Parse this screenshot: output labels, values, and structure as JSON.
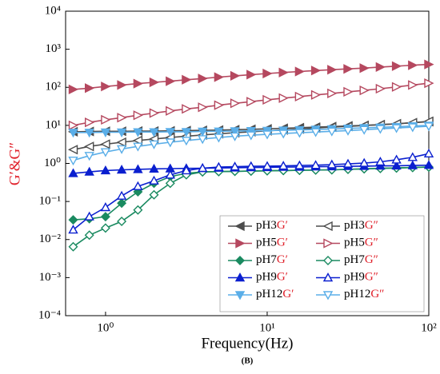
{
  "chart_data": {
    "type": "line",
    "log_x": true,
    "log_y": true,
    "x_label": "Frequency(Hz)",
    "y_label": "G′&G″",
    "caption": "(B)",
    "xlim": [
      0.566,
      100
    ],
    "xticks": [
      {
        "value": 1,
        "label": "10⁰"
      },
      {
        "value": 10,
        "label": "10¹"
      },
      {
        "value": 100,
        "label": "10²"
      }
    ],
    "ylim": [
      0.0001,
      10000
    ],
    "yticks": [
      {
        "value": 0.0001,
        "label": "10⁻⁴"
      },
      {
        "value": 0.001,
        "label": "10⁻³"
      },
      {
        "value": 0.01,
        "label": "10⁻²"
      },
      {
        "value": 0.1,
        "label": "10⁻¹"
      },
      {
        "value": 1,
        "label": "10⁰"
      },
      {
        "value": 10,
        "label": "10¹"
      },
      {
        "value": 100,
        "label": "10²"
      },
      {
        "value": 1000,
        "label": "10³"
      },
      {
        "value": 10000,
        "label": "10⁴"
      }
    ],
    "x": [
      0.631,
      0.794,
      1,
      1.259,
      1.585,
      1.995,
      2.512,
      3.162,
      3.981,
      5.012,
      6.31,
      7.943,
      10,
      12.59,
      15.85,
      19.95,
      25.12,
      31.62,
      39.81,
      50.12,
      63.1,
      79.43,
      100
    ],
    "series": [
      {
        "name": "pH3G′",
        "color": "#4d4d4d",
        "marker": "triangle-left",
        "filled": true,
        "values": [
          6.8,
          6.9,
          7,
          7,
          7.1,
          7.1,
          7.2,
          7.3,
          7.4,
          7.5,
          7.7,
          7.9,
          8.1,
          8.4,
          8.7,
          9,
          9.3,
          9.7,
          10,
          10.5,
          11,
          11.7,
          12.5
        ]
      },
      {
        "name": "pH3G″",
        "color": "#4d4d4d",
        "marker": "triangle-left",
        "filled": false,
        "values": [
          2.3,
          2.8,
          3.2,
          3.6,
          4,
          4.4,
          4.8,
          5.2,
          5.6,
          6,
          6.4,
          6.8,
          7.2,
          7.6,
          8,
          8.5,
          9,
          9.4,
          9.9,
          10.4,
          11,
          11.8,
          12.8
        ]
      },
      {
        "name": "pH5G′",
        "color": "#b5485f",
        "marker": "triangle-right",
        "filled": true,
        "values": [
          88,
          95,
          105,
          115,
          125,
          135,
          145,
          158,
          170,
          185,
          200,
          215,
          230,
          245,
          260,
          275,
          290,
          305,
          320,
          340,
          360,
          380,
          400
        ]
      },
      {
        "name": "pH5G″",
        "color": "#b5485f",
        "marker": "triangle-right",
        "filled": false,
        "values": [
          10,
          12,
          14,
          16,
          18.5,
          21,
          24,
          27,
          30,
          34,
          38,
          42,
          47,
          52,
          57,
          63,
          69,
          76,
          83,
          92,
          102,
          115,
          128
        ]
      },
      {
        "name": "pH7G′",
        "color": "#1a8a60",
        "marker": "diamond",
        "filled": true,
        "values": [
          0.033,
          0.035,
          0.04,
          0.09,
          0.18,
          0.3,
          0.45,
          0.55,
          0.6,
          0.61,
          0.62,
          0.63,
          0.64,
          0.65,
          0.66,
          0.67,
          0.68,
          0.7,
          0.72,
          0.74,
          0.76,
          0.78,
          0.8
        ]
      },
      {
        "name": "pH7G″",
        "color": "#1a8a60",
        "marker": "diamond",
        "filled": false,
        "values": [
          0.0065,
          0.013,
          0.02,
          0.03,
          0.06,
          0.15,
          0.3,
          0.5,
          0.6,
          0.61,
          0.62,
          0.63,
          0.64,
          0.65,
          0.66,
          0.67,
          0.68,
          0.7,
          0.72,
          0.74,
          0.76,
          0.78,
          0.8
        ]
      },
      {
        "name": "pH9G′",
        "color": "#0a1fcf",
        "marker": "triangle-up",
        "filled": true,
        "values": [
          0.55,
          0.6,
          0.65,
          0.68,
          0.7,
          0.72,
          0.73,
          0.74,
          0.75,
          0.76,
          0.77,
          0.78,
          0.79,
          0.8,
          0.81,
          0.82,
          0.83,
          0.84,
          0.85,
          0.86,
          0.87,
          0.88,
          0.9
        ]
      },
      {
        "name": "pH9G″",
        "color": "#0a1fcf",
        "marker": "triangle-up",
        "filled": false,
        "values": [
          0.018,
          0.04,
          0.07,
          0.14,
          0.25,
          0.35,
          0.5,
          0.65,
          0.75,
          0.8,
          0.82,
          0.84,
          0.85,
          0.86,
          0.88,
          0.9,
          0.93,
          0.97,
          1.02,
          1.1,
          1.25,
          1.45,
          1.8
        ]
      },
      {
        "name": "pH12G′",
        "color": "#5aaee8",
        "marker": "triangle-down",
        "filled": true,
        "values": [
          6.5,
          6.5,
          6.6,
          6.6,
          6.7,
          6.7,
          6.8,
          6.8,
          6.9,
          7,
          7.1,
          7.2,
          7.3,
          7.4,
          7.6,
          7.8,
          8,
          8.3,
          8.6,
          8.9,
          9.2,
          9.6,
          10
        ]
      },
      {
        "name": "pH12G″",
        "color": "#5aaee8",
        "marker": "triangle-down",
        "filled": false,
        "values": [
          1.2,
          1.6,
          2,
          2.4,
          2.8,
          3.2,
          3.6,
          4,
          4.4,
          4.8,
          5.2,
          5.5,
          5.8,
          6.1,
          6.4,
          6.7,
          7,
          7.3,
          7.7,
          8.1,
          8.5,
          9,
          9.5
        ]
      }
    ]
  }
}
